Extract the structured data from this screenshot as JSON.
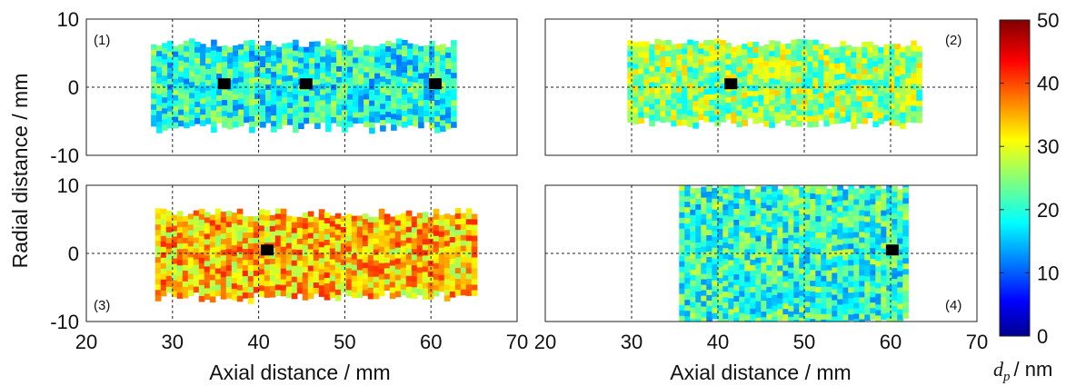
{
  "figure": {
    "x_axis_label": "Axial distance / mm",
    "y_axis_label": "Radial distance / mm",
    "colorbar_label": "/ nm",
    "colorbar_symbol": "d",
    "colorbar_subscript": "p"
  },
  "chart_data": [
    {
      "type": "heatmap",
      "panel_label": "(1)",
      "xlim": [
        20,
        70
      ],
      "ylim": [
        -10,
        10
      ],
      "xticks": [
        20,
        30,
        40,
        50,
        60,
        70
      ],
      "yticks": [
        -10,
        0,
        10
      ],
      "grid": true,
      "region": {
        "x": [
          27.5,
          62.5
        ],
        "y_lower": -5.5,
        "y_upper": 6.5
      },
      "mean_dp_nm": 20,
      "markers": [
        {
          "x": 36,
          "y": 0.5
        },
        {
          "x": 45.5,
          "y": 0.5
        },
        {
          "x": 60.5,
          "y": 0.5
        }
      ]
    },
    {
      "type": "heatmap",
      "panel_label": "(2)",
      "xlim": [
        20,
        70
      ],
      "ylim": [
        -10,
        10
      ],
      "xticks": [
        20,
        30,
        40,
        50,
        60,
        70
      ],
      "yticks": [
        -10,
        0,
        10
      ],
      "grid": true,
      "region": {
        "x": [
          29.5,
          63
        ],
        "y_lower": -5,
        "y_upper": 6.5
      },
      "mean_dp_nm": 26,
      "markers": [
        {
          "x": 41.5,
          "y": 0.5
        }
      ]
    },
    {
      "type": "heatmap",
      "panel_label": "(3)",
      "xlim": [
        20,
        70
      ],
      "ylim": [
        -10,
        10
      ],
      "xticks": [
        20,
        30,
        40,
        50,
        60,
        70
      ],
      "yticks": [
        -10,
        0,
        10
      ],
      "grid": true,
      "region": {
        "x": [
          28,
          65
        ],
        "y_lower": -6,
        "y_upper": 6
      },
      "mean_dp_nm": 34,
      "markers": [
        {
          "x": 41,
          "y": 0.5
        }
      ]
    },
    {
      "type": "heatmap",
      "panel_label": "(4)",
      "xlim": [
        20,
        70
      ],
      "ylim": [
        -10,
        10
      ],
      "xticks": [
        20,
        30,
        40,
        50,
        60,
        70
      ],
      "yticks": [
        -10,
        0,
        10
      ],
      "grid": true,
      "region": {
        "x": [
          35.5,
          62
        ],
        "y_lower": -10,
        "y_upper": 10
      },
      "mean_dp_nm": 21,
      "markers": [
        {
          "x": 60.2,
          "y": 0.5
        }
      ]
    }
  ],
  "colorbar": {
    "min": 0,
    "max": 50,
    "ticks": [
      0,
      10,
      20,
      30,
      40,
      50
    ],
    "colormap": "jet"
  }
}
